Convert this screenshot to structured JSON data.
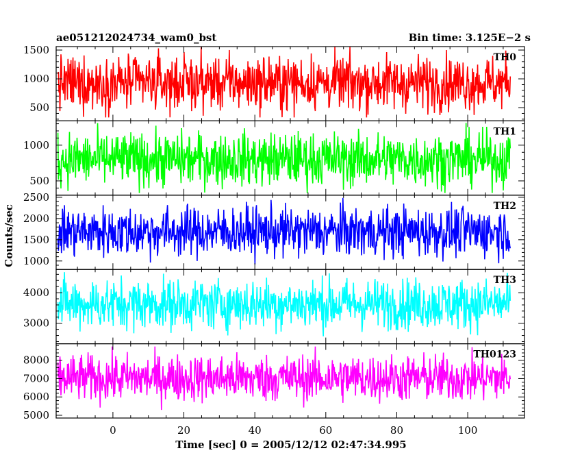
{
  "chart_data": {
    "type": "line",
    "title_left": "ae051212024734_wam0_bst",
    "title_right": "Bin time: 3.125E−2 s",
    "xlabel": "Time [sec] 0 = 2005/12/12 02:47:34.995",
    "ylabel": "Counts/sec",
    "xlim": [
      -16,
      116
    ],
    "x_ticks": [
      0,
      20,
      40,
      60,
      80,
      100
    ],
    "x_start": -15.5,
    "x_end": 112,
    "grid": false,
    "panels": [
      {
        "name": "TH0",
        "color": "#ff0000",
        "ylim": [
          270,
          1560
        ],
        "y_ticks": [
          500,
          1000,
          1500
        ],
        "mean": 930,
        "spread": 240,
        "min": 330,
        "max": 1560
      },
      {
        "name": "TH1",
        "color": "#00ff00",
        "ylim": [
          300,
          1340
        ],
        "y_ticks": [
          500,
          1000
        ],
        "mean": 800,
        "spread": 190,
        "min": 330,
        "max": 1340
      },
      {
        "name": "TH2",
        "color": "#0000ff",
        "ylim": [
          800,
          2550
        ],
        "y_ticks": [
          1000,
          1500,
          2000,
          2500
        ],
        "mean": 1690,
        "spread": 300,
        "min": 880,
        "max": 2550
      },
      {
        "name": "TH3",
        "color": "#00ffff",
        "ylim": [
          2330,
          4760
        ],
        "y_ticks": [
          3000,
          4000
        ],
        "mean": 3630,
        "spread": 420,
        "min": 2500,
        "max": 4760
      },
      {
        "name": "TH0123",
        "color": "#ff00ff",
        "ylim": [
          4850,
          8900
        ],
        "y_ticks": [
          5000,
          6000,
          7000,
          8000
        ],
        "mean": 7030,
        "spread": 650,
        "min": 4900,
        "max": 8750
      }
    ]
  }
}
